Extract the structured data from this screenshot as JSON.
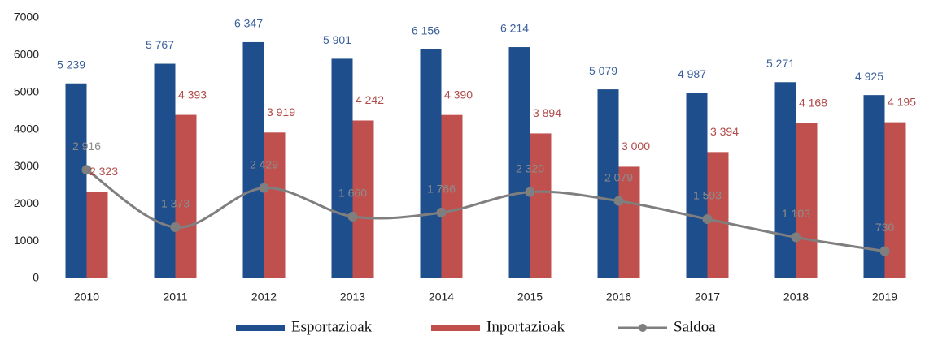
{
  "chart_data": {
    "type": "bar",
    "categories": [
      "2010",
      "2011",
      "2012",
      "2013",
      "2014",
      "2015",
      "2016",
      "2017",
      "2018",
      "2019"
    ],
    "series": [
      {
        "name": "Esportazioak",
        "color": "#1f4e8c",
        "label_color": "#3a5f9c",
        "values": [
          5239,
          5767,
          6347,
          5901,
          6156,
          6214,
          5079,
          4987,
          5271,
          4925
        ],
        "value_labels": [
          "5 239",
          "5 767",
          "6 347",
          "5 901",
          "6 156",
          "6 214",
          "5 079",
          "4 987",
          "5 271",
          "4 925"
        ]
      },
      {
        "name": "Inportazioak",
        "color": "#c0504d",
        "label_color": "#b04a48",
        "values": [
          2323,
          4393,
          3919,
          4242,
          4390,
          3894,
          3000,
          3394,
          4168,
          4195
        ],
        "value_labels": [
          "2 323",
          "4 393",
          "3 919",
          "4 242",
          "4 390",
          "3 894",
          "3 000",
          "3 394",
          "4 168",
          "4 195"
        ]
      },
      {
        "name": "Saldoa",
        "type": "line",
        "color": "#7f7f7f",
        "label_color": "#8c8c8c",
        "values": [
          2916,
          1373,
          2429,
          1660,
          1766,
          2320,
          2079,
          1593,
          1103,
          730
        ],
        "value_labels": [
          "2 916",
          "1 373",
          "2 429",
          "1 660",
          "1 766",
          "2 320",
          "2 079",
          "1 593",
          "1 103",
          "730"
        ]
      }
    ],
    "ylim": [
      0,
      7000
    ],
    "yticks": [
      0,
      1000,
      2000,
      3000,
      4000,
      5000,
      6000,
      7000
    ],
    "grid": false,
    "legend": "bottom"
  }
}
